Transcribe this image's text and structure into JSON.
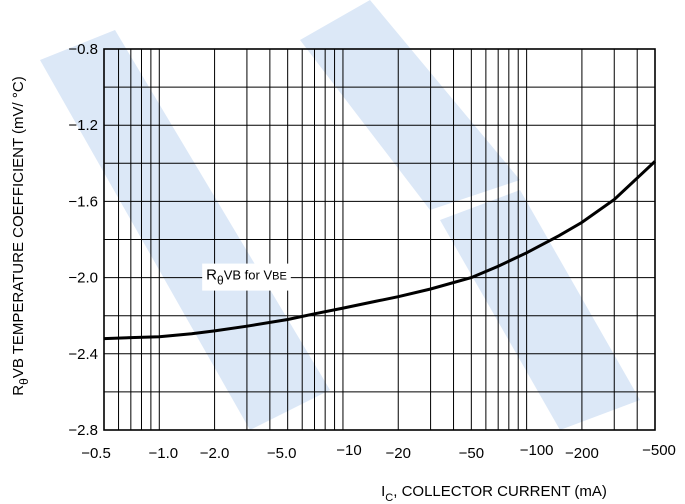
{
  "chart_data": {
    "type": "line",
    "x_scale": "log",
    "xlim": [
      0.5,
      500
    ],
    "ylim": [
      -2.8,
      -0.8
    ],
    "grid": true,
    "legend": "none",
    "xlabel": {
      "main": "I",
      "sub": "C",
      "rest": ", COLLECTOR CURRENT (mA)"
    },
    "ylabel": {
      "main": "R",
      "sub": "θ",
      "rest": "VB TEMPERATURE COEFFICIENT (mV/ °C)"
    },
    "x_ticks": [
      {
        "value": 0.5,
        "label": "−0.5"
      },
      {
        "value": 1,
        "label": "−1.0"
      },
      {
        "value": 2,
        "label": "−2.0"
      },
      {
        "value": 5,
        "label": "−5.0"
      },
      {
        "value": 10,
        "label": "−10"
      },
      {
        "value": 20,
        "label": "−20"
      },
      {
        "value": 50,
        "label": "−50"
      },
      {
        "value": 100,
        "label": "−100"
      },
      {
        "value": 200,
        "label": "−200"
      },
      {
        "value": 500,
        "label": "−500"
      }
    ],
    "y_ticks": [
      {
        "value": -0.8,
        "label": "−0.8"
      },
      {
        "value": -1.2,
        "label": "−1.2"
      },
      {
        "value": -1.6,
        "label": "−1.6"
      },
      {
        "value": -2.0,
        "label": "−2.0"
      },
      {
        "value": -2.4,
        "label": "−2.4"
      },
      {
        "value": -2.8,
        "label": "−2.8"
      }
    ],
    "series": [
      {
        "x": [
          0.5,
          0.7,
          1.0,
          1.5,
          2.0,
          3.0,
          5.0,
          7.0,
          10,
          15,
          20,
          30,
          50,
          70,
          100,
          150,
          200,
          300,
          500
        ],
        "y": [
          -2.32,
          -2.315,
          -2.31,
          -2.295,
          -2.28,
          -2.255,
          -2.22,
          -2.19,
          -2.16,
          -2.125,
          -2.1,
          -2.06,
          -2.0,
          -1.94,
          -1.87,
          -1.78,
          -1.71,
          -1.59,
          -1.39
        ]
      }
    ],
    "annotations": [
      {
        "main": "R",
        "sub": "θ",
        "rest": "VB for V",
        "small": "BE",
        "x": 1.8,
        "y": -2.0
      }
    ]
  },
  "colors": {
    "line": "#000000",
    "grid": "#000000",
    "watermark": "#dce8f7"
  }
}
